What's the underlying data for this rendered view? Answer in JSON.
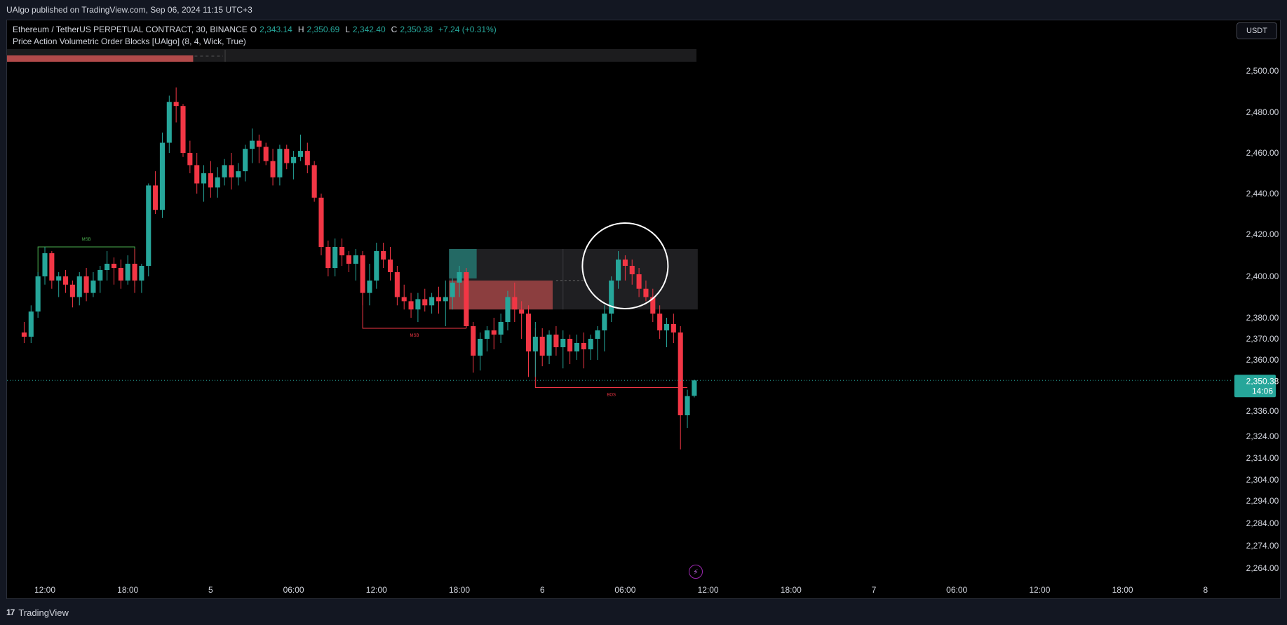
{
  "header": {
    "publish_line": "UAlgo published on TradingView.com, Sep 06, 2024 11:15 UTC+3"
  },
  "legend": {
    "symbol": "Ethereum / TetherUS PERPETUAL CONTRACT, 30, BINANCE",
    "open_label": "O",
    "open": "2,343.14",
    "high_label": "H",
    "high": "2,350.69",
    "low_label": "L",
    "low": "2,342.40",
    "close_label": "C",
    "close": "2,350.38",
    "change": "+7.24 (+0.31%)",
    "indicator": "Price Action Volumetric Order Blocks [UAlgo] (8, 4, Wick, True)"
  },
  "toolbar": {
    "currency_label": "USDT"
  },
  "footer": {
    "brand": "TradingView",
    "logo_glyph": "17"
  },
  "colors": {
    "up": "#26a69a",
    "down": "#f23645",
    "background": "#000000",
    "bull_zone": "#26a69a",
    "bear_zone": "#b24a4a",
    "msb": "#4caf50"
  },
  "chart_data": {
    "type": "candlestick",
    "symbol": "ETHUSDT.P",
    "interval_minutes": 30,
    "y_axis": {
      "ticks": [
        2500,
        2480,
        2460,
        2440,
        2420,
        2400,
        2380,
        2370,
        2360,
        2336,
        2324,
        2314,
        2304,
        2294,
        2284,
        2274,
        2264
      ],
      "tick_labels": [
        "2,500.00",
        "2,480.00",
        "2,460.00",
        "2,440.00",
        "2,420.00",
        "2,400.00",
        "2,380.00",
        "2,370.00",
        "2,360.00",
        "2,336.00",
        "2,324.00",
        "2,314.00",
        "2,304.00",
        "2,294.00",
        "2,284.00",
        "2,274.00",
        "2,264.00"
      ]
    },
    "x_axis": {
      "tick_labels": [
        "12:00",
        "18:00",
        "5",
        "06:00",
        "12:00",
        "18:00",
        "6",
        "06:00",
        "12:00",
        "18:00",
        "7",
        "06:00",
        "12:00",
        "18:00",
        "8"
      ],
      "first_bar_index_at_first_tick": 3,
      "bars_per_tick": 12
    },
    "last_price": {
      "value": 2350.38,
      "label": "2,350.38",
      "countdown": "14:06"
    },
    "candles": [
      [
        2373,
        2378,
        2368,
        2371
      ],
      [
        2371,
        2386,
        2368,
        2383
      ],
      [
        2383,
        2402,
        2380,
        2400
      ],
      [
        2400,
        2414,
        2396,
        2411
      ],
      [
        2411,
        2412,
        2394,
        2398
      ],
      [
        2398,
        2402,
        2390,
        2400
      ],
      [
        2400,
        2403,
        2392,
        2396
      ],
      [
        2396,
        2398,
        2385,
        2390
      ],
      [
        2390,
        2402,
        2386,
        2400
      ],
      [
        2400,
        2404,
        2388,
        2392
      ],
      [
        2392,
        2402,
        2390,
        2398
      ],
      [
        2398,
        2405,
        2392,
        2403
      ],
      [
        2403,
        2412,
        2398,
        2406
      ],
      [
        2406,
        2409,
        2396,
        2404
      ],
      [
        2404,
        2408,
        2394,
        2398
      ],
      [
        2398,
        2410,
        2396,
        2406
      ],
      [
        2406,
        2413,
        2392,
        2398
      ],
      [
        2398,
        2406,
        2392,
        2405
      ],
      [
        2405,
        2445,
        2400,
        2444
      ],
      [
        2444,
        2451,
        2430,
        2432
      ],
      [
        2432,
        2470,
        2428,
        2465
      ],
      [
        2465,
        2488,
        2460,
        2485
      ],
      [
        2485,
        2492,
        2475,
        2483
      ],
      [
        2483,
        2484,
        2458,
        2460
      ],
      [
        2460,
        2466,
        2450,
        2454
      ],
      [
        2454,
        2460,
        2440,
        2445
      ],
      [
        2445,
        2454,
        2436,
        2450
      ],
      [
        2450,
        2456,
        2438,
        2443
      ],
      [
        2443,
        2453,
        2438,
        2448
      ],
      [
        2448,
        2457,
        2444,
        2454
      ],
      [
        2454,
        2460,
        2442,
        2448
      ],
      [
        2448,
        2455,
        2444,
        2451
      ],
      [
        2451,
        2464,
        2446,
        2462
      ],
      [
        2462,
        2472,
        2455,
        2466
      ],
      [
        2466,
        2469,
        2455,
        2463
      ],
      [
        2463,
        2465,
        2454,
        2456
      ],
      [
        2456,
        2462,
        2444,
        2448
      ],
      [
        2448,
        2464,
        2444,
        2462
      ],
      [
        2462,
        2464,
        2452,
        2455
      ],
      [
        2455,
        2461,
        2447,
        2458
      ],
      [
        2458,
        2469,
        2456,
        2461
      ],
      [
        2461,
        2465,
        2450,
        2454
      ],
      [
        2454,
        2456,
        2436,
        2438
      ],
      [
        2438,
        2440,
        2410,
        2414
      ],
      [
        2414,
        2417,
        2400,
        2404
      ],
      [
        2404,
        2418,
        2400,
        2414
      ],
      [
        2414,
        2418,
        2405,
        2410
      ],
      [
        2410,
        2412,
        2402,
        2406
      ],
      [
        2406,
        2413,
        2398,
        2410
      ],
      [
        2410,
        2412,
        2386,
        2392
      ],
      [
        2392,
        2406,
        2386,
        2398
      ],
      [
        2398,
        2416,
        2394,
        2412
      ],
      [
        2412,
        2416,
        2404,
        2408
      ],
      [
        2408,
        2414,
        2398,
        2402
      ],
      [
        2402,
        2405,
        2386,
        2390
      ],
      [
        2390,
        2396,
        2384,
        2388
      ],
      [
        2388,
        2392,
        2380,
        2384
      ],
      [
        2384,
        2392,
        2378,
        2389
      ],
      [
        2389,
        2394,
        2383,
        2386
      ],
      [
        2386,
        2392,
        2382,
        2390
      ],
      [
        2390,
        2395,
        2382,
        2388
      ],
      [
        2388,
        2398,
        2376,
        2390
      ],
      [
        2390,
        2399,
        2384,
        2397
      ],
      [
        2397,
        2405,
        2390,
        2402
      ],
      [
        2402,
        2404,
        2375,
        2376
      ],
      [
        2376,
        2378,
        2354,
        2362
      ],
      [
        2362,
        2373,
        2355,
        2370
      ],
      [
        2370,
        2376,
        2364,
        2374
      ],
      [
        2374,
        2380,
        2365,
        2372
      ],
      [
        2372,
        2382,
        2368,
        2378
      ],
      [
        2378,
        2393,
        2374,
        2390
      ],
      [
        2390,
        2397,
        2378,
        2384
      ],
      [
        2384,
        2388,
        2370,
        2382
      ],
      [
        2382,
        2386,
        2352,
        2364
      ],
      [
        2364,
        2378,
        2352,
        2371
      ],
      [
        2371,
        2375,
        2357,
        2362
      ],
      [
        2362,
        2374,
        2358,
        2372
      ],
      [
        2372,
        2376,
        2362,
        2366
      ],
      [
        2366,
        2374,
        2356,
        2370
      ],
      [
        2370,
        2372,
        2358,
        2364
      ],
      [
        2364,
        2372,
        2360,
        2368
      ],
      [
        2368,
        2373,
        2356,
        2365
      ],
      [
        2365,
        2372,
        2360,
        2370
      ],
      [
        2370,
        2376,
        2360,
        2374
      ],
      [
        2374,
        2386,
        2364,
        2382
      ],
      [
        2382,
        2400,
        2378,
        2398
      ],
      [
        2398,
        2412,
        2394,
        2408
      ],
      [
        2408,
        2410,
        2398,
        2405
      ],
      [
        2405,
        2408,
        2396,
        2401
      ],
      [
        2401,
        2404,
        2390,
        2394
      ],
      [
        2394,
        2398,
        2388,
        2390
      ],
      [
        2390,
        2394,
        2378,
        2382
      ],
      [
        2382,
        2386,
        2370,
        2374
      ],
      [
        2374,
        2380,
        2366,
        2377
      ],
      [
        2377,
        2382,
        2368,
        2373
      ],
      [
        2373,
        2376,
        2318,
        2334
      ],
      [
        2334,
        2346,
        2328,
        2343
      ],
      [
        2343.14,
        2350.69,
        2342.4,
        2350.38
      ]
    ],
    "annotations": [
      {
        "label": "MSB",
        "type": "market-structure-break",
        "price": 2414,
        "from_bar": 2,
        "to_bar": 16,
        "color": "#4caf50"
      },
      {
        "label": "MSB",
        "type": "market-structure-break",
        "price": 2375,
        "from_bar": 49,
        "to_bar": 64,
        "color": "#f23645"
      },
      {
        "label": "BOS",
        "type": "break-of-structure",
        "price": 2347,
        "from_bar": 74,
        "to_bar": 96,
        "color": "#f23645"
      }
    ],
    "order_blocks": [
      {
        "type": "bullish",
        "top": 2413,
        "bottom": 2399,
        "from_bar": 62,
        "to_bar": 66,
        "color": "#26a69a"
      },
      {
        "type": "bearish",
        "top": 2398,
        "bottom": 2384,
        "from_bar": 62,
        "to_bar": 77,
        "color": "#b24a4a"
      }
    ],
    "highlight_zone": {
      "top": 2413,
      "bottom": 2384,
      "from_bar": 62,
      "to_bar": 98
    },
    "volume_bar": {
      "fill_fraction": 0.27
    },
    "highlight_circle": {
      "center_bar": 87,
      "center_price": 2404
    }
  }
}
